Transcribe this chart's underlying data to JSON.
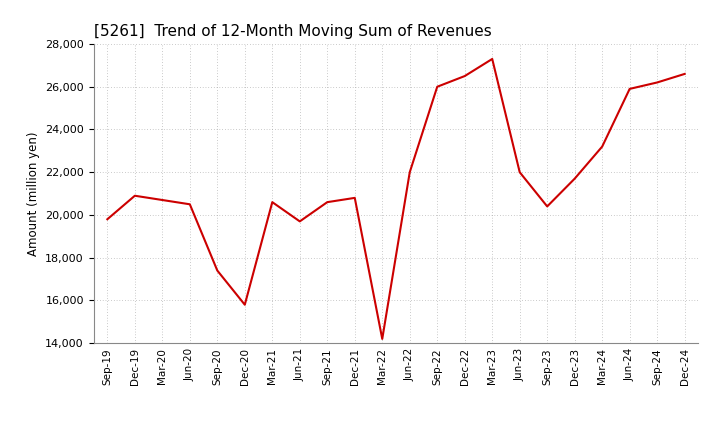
{
  "title": "[5261]  Trend of 12-Month Moving Sum of Revenues",
  "ylabel": "Amount (million yen)",
  "line_color": "#cc0000",
  "background_color": "#ffffff",
  "plot_bg_color": "#ffffff",
  "grid_color": "#999999",
  "ylim": [
    14000,
    28000
  ],
  "yticks": [
    14000,
    16000,
    18000,
    20000,
    22000,
    24000,
    26000,
    28000
  ],
  "xlabels": [
    "Sep-19",
    "Dec-19",
    "Mar-20",
    "Jun-20",
    "Sep-20",
    "Dec-20",
    "Mar-21",
    "Jun-21",
    "Sep-21",
    "Dec-21",
    "Mar-22",
    "Jun-22",
    "Sep-22",
    "Dec-22",
    "Mar-23",
    "Jun-23",
    "Sep-23",
    "Dec-23",
    "Mar-24",
    "Jun-24",
    "Sep-24",
    "Dec-24"
  ],
  "values": [
    19800,
    20900,
    20700,
    20500,
    17400,
    15800,
    20600,
    19700,
    20600,
    20800,
    14200,
    22000,
    26000,
    26500,
    27300,
    22000,
    20400,
    21700,
    23200,
    25900,
    26200,
    26600
  ]
}
